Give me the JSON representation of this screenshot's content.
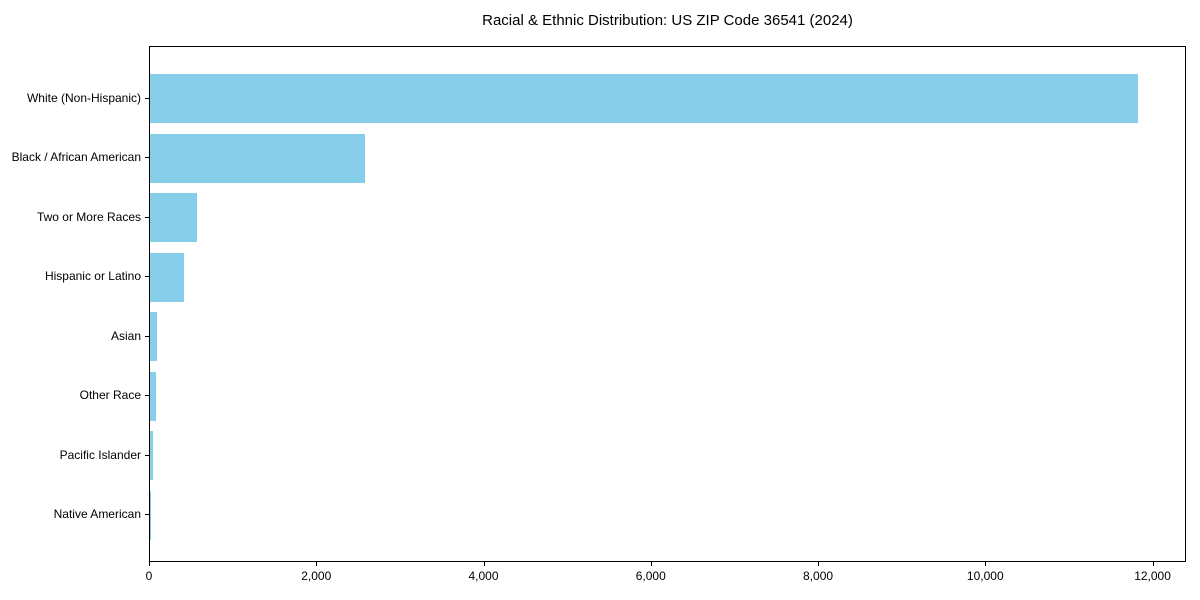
{
  "chart_data": {
    "type": "bar",
    "orientation": "horizontal",
    "title": "Racial & Ethnic Distribution: US ZIP Code 36541 (2024)",
    "categories": [
      "White (Non-Hispanic)",
      "Black / African American",
      "Two or More Races",
      "Hispanic or Latino",
      "Asian",
      "Other Race",
      "Pacific Islander",
      "Native American"
    ],
    "values": [
      11810,
      2570,
      560,
      410,
      85,
      70,
      30,
      5
    ],
    "xlabel": "",
    "ylabel": "",
    "xlim": [
      0,
      12400
    ],
    "x_ticks": [
      0,
      2000,
      4000,
      6000,
      8000,
      10000,
      12000
    ],
    "x_tick_labels": [
      "0",
      "2,000",
      "4,000",
      "6,000",
      "8,000",
      "10,000",
      "12,000"
    ],
    "bar_color": "#87CEEB",
    "grid": false,
    "legend": "none",
    "frame": true
  }
}
